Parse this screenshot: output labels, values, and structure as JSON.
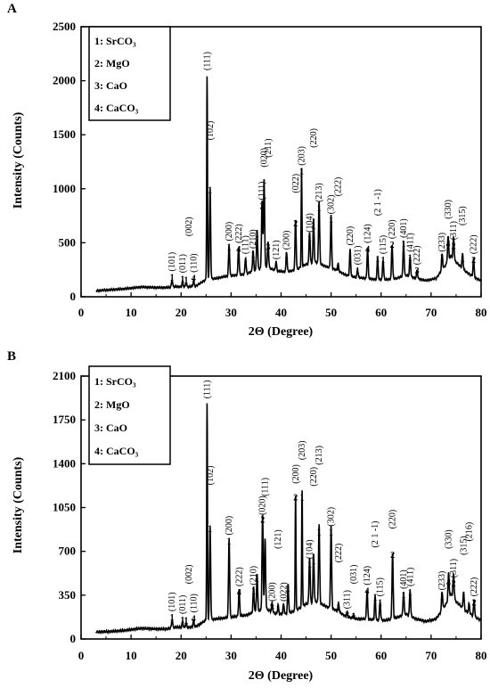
{
  "chart_data": [
    {
      "panel": "A",
      "type": "line",
      "xlabel": "2Θ (Degree)",
      "ylabel": "Intensity (Counts)",
      "xlim": [
        0,
        80
      ],
      "ylim": [
        0,
        2500
      ],
      "xticks": [
        0,
        10,
        20,
        30,
        40,
        50,
        60,
        70,
        80
      ],
      "yticks": [
        0,
        500,
        1000,
        1500,
        2000,
        2500
      ],
      "legend": [
        "1: SrCO₃",
        "2: MgO",
        "3: CaO",
        "4: CaCO₃"
      ],
      "legend_position": "top-left",
      "grid": false,
      "baseline": [
        [
          3,
          55
        ],
        [
          6,
          65
        ],
        [
          9,
          75
        ],
        [
          12,
          90
        ],
        [
          15,
          85
        ],
        [
          17,
          85
        ],
        [
          19,
          95
        ],
        [
          21,
          90
        ],
        [
          23,
          100
        ],
        [
          25,
          160
        ],
        [
          27,
          170
        ],
        [
          29,
          190
        ],
        [
          31,
          200
        ],
        [
          33,
          210
        ],
        [
          35,
          250
        ],
        [
          37,
          280
        ],
        [
          39,
          240
        ],
        [
          41,
          230
        ],
        [
          43,
          250
        ],
        [
          45,
          300
        ],
        [
          47,
          320
        ],
        [
          49,
          280
        ],
        [
          51,
          250
        ],
        [
          53,
          200
        ],
        [
          55,
          180
        ],
        [
          57,
          170
        ],
        [
          59,
          160
        ],
        [
          61,
          160
        ],
        [
          63,
          170
        ],
        [
          65,
          200
        ],
        [
          67,
          170
        ],
        [
          69,
          150
        ],
        [
          71,
          170
        ],
        [
          73,
          300
        ],
        [
          74,
          380
        ],
        [
          75,
          320
        ],
        [
          77,
          230
        ],
        [
          79,
          170
        ],
        [
          80,
          150
        ]
      ],
      "peaks": [
        {
          "x": 18.2,
          "y": 120,
          "num": "1",
          "hkl": "(101)"
        },
        {
          "x": 20.3,
          "y": 105,
          "num": "1",
          "hkl": "(011)"
        },
        {
          "x": 21.0,
          "y": 95,
          "num": "1",
          "hkl": ""
        },
        {
          "x": 22.5,
          "y": 110,
          "num": "4",
          "hkl": "(110)"
        },
        {
          "x": 21.6,
          "y": 0,
          "num": "",
          "hkl": "(002)",
          "label_y": 560
        },
        {
          "x": 25.2,
          "y": 1980,
          "num": "",
          "hkl": "(111)"
        },
        {
          "x": 25.8,
          "y": 930,
          "num": "1",
          "hkl": "(102)",
          "label_y": 1450
        },
        {
          "x": 29.6,
          "y": 400,
          "num": "1",
          "hkl": "(200)"
        },
        {
          "x": 31.5,
          "y": 380,
          "num": "4",
          "hkl": "(222)"
        },
        {
          "x": 32.9,
          "y": 280,
          "num": "",
          "hkl": "(111)"
        },
        {
          "x": 34.4,
          "y": 330,
          "num": "1",
          "hkl": "(210)"
        },
        {
          "x": 35.2,
          "y": 520,
          "num": "1",
          "hkl": ""
        },
        {
          "x": 36.2,
          "y": 780,
          "num": "2",
          "hkl": "(111)"
        },
        {
          "x": 36.6,
          "y": 980,
          "num": "",
          "hkl": "(020)",
          "label_y": 1200
        },
        {
          "x": 37.4,
          "y": 400,
          "num": "3",
          "hkl": "(211)",
          "label_y": 1290
        },
        {
          "x": 39.0,
          "y": 230,
          "num": "",
          "hkl": "(121)"
        },
        {
          "x": 41.1,
          "y": 320,
          "num": "1",
          "hkl": "(200)"
        },
        {
          "x": 42.9,
          "y": 620,
          "num": "2",
          "hkl": "(022)",
          "label_y": 960
        },
        {
          "x": 44.1,
          "y": 1100,
          "num": "1",
          "hkl": "(203)"
        },
        {
          "x": 45.7,
          "y": 480,
          "num": "1",
          "hkl": "(104)"
        },
        {
          "x": 46.5,
          "y": 600,
          "num": "1",
          "hkl": "(220)",
          "label_y": 1380
        },
        {
          "x": 47.6,
          "y": 760,
          "num": "1",
          "hkl": "(213)"
        },
        {
          "x": 50.0,
          "y": 650,
          "num": "1",
          "hkl": "(302)"
        },
        {
          "x": 51.4,
          "y": 210,
          "num": "1",
          "hkl": "(222)",
          "label_y": 930
        },
        {
          "x": 53.8,
          "y": 360,
          "num": "",
          "hkl": "(220)"
        },
        {
          "x": 55.3,
          "y": 180,
          "num": "1",
          "hkl": "(031)"
        },
        {
          "x": 57.3,
          "y": 380,
          "num": "4",
          "hkl": "(124)"
        },
        {
          "x": 59.3,
          "y": 290,
          "num": "1",
          "hkl": "(2 1 -1)",
          "label_y": 750
        },
        {
          "x": 60.4,
          "y": 280,
          "num": "1",
          "hkl": "(115)"
        },
        {
          "x": 62.2,
          "y": 420,
          "num": "2",
          "hkl": "(220)"
        },
        {
          "x": 64.5,
          "y": 430,
          "num": "1",
          "hkl": "(401)"
        },
        {
          "x": 65.8,
          "y": 300,
          "num": "1",
          "hkl": "(411)"
        },
        {
          "x": 67.2,
          "y": 180,
          "num": "3",
          "hkl": "(222)"
        },
        {
          "x": 72.2,
          "y": 300,
          "num": "1",
          "hkl": "(233)"
        },
        {
          "x": 73.4,
          "y": 430,
          "num": "4",
          "hkl": "(330)",
          "label_y": 720
        },
        {
          "x": 74.5,
          "y": 410,
          "num": "2",
          "hkl": "(311)"
        },
        {
          "x": 76.3,
          "y": 290,
          "num": "1",
          "hkl": "(315)",
          "label_y": 660
        },
        {
          "x": 78.5,
          "y": 280,
          "num": "2",
          "hkl": "(222)"
        }
      ]
    },
    {
      "panel": "B",
      "type": "line",
      "xlabel": "2Θ (Degree)",
      "ylabel": "Intensity (Counts)",
      "xlim": [
        0,
        80
      ],
      "ylim": [
        0,
        2100
      ],
      "xticks": [
        0,
        10,
        20,
        30,
        40,
        50,
        60,
        70,
        80
      ],
      "yticks": [
        0,
        350,
        700,
        1050,
        1400,
        1750,
        2100
      ],
      "legend": [
        "1: SrCO₃",
        "2: MgO",
        "3: CaO",
        "4: CaCO₃"
      ],
      "legend_position": "top-left",
      "grid": false,
      "baseline": [
        [
          3,
          55
        ],
        [
          6,
          60
        ],
        [
          9,
          70
        ],
        [
          12,
          85
        ],
        [
          15,
          80
        ],
        [
          17,
          80
        ],
        [
          19,
          95
        ],
        [
          21,
          90
        ],
        [
          23,
          100
        ],
        [
          25,
          150
        ],
        [
          27,
          160
        ],
        [
          29,
          170
        ],
        [
          31,
          180
        ],
        [
          33,
          190
        ],
        [
          35,
          220
        ],
        [
          37,
          240
        ],
        [
          39,
          200
        ],
        [
          41,
          200
        ],
        [
          43,
          230
        ],
        [
          45,
          280
        ],
        [
          47,
          300
        ],
        [
          49,
          260
        ],
        [
          51,
          230
        ],
        [
          53,
          180
        ],
        [
          55,
          160
        ],
        [
          57,
          160
        ],
        [
          59,
          150
        ],
        [
          61,
          150
        ],
        [
          63,
          170
        ],
        [
          65,
          200
        ],
        [
          67,
          160
        ],
        [
          69,
          140
        ],
        [
          71,
          160
        ],
        [
          73,
          280
        ],
        [
          74,
          360
        ],
        [
          75,
          300
        ],
        [
          77,
          220
        ],
        [
          79,
          170
        ],
        [
          80,
          150
        ]
      ],
      "peaks": [
        {
          "x": 18.2,
          "y": 120,
          "num": "1",
          "hkl": "(101)"
        },
        {
          "x": 20.3,
          "y": 100,
          "num": "1",
          "hkl": "(011)"
        },
        {
          "x": 21.0,
          "y": 95,
          "num": "1",
          "hkl": ""
        },
        {
          "x": 22.5,
          "y": 110,
          "num": "4",
          "hkl": "(110)"
        },
        {
          "x": 21.6,
          "y": 0,
          "num": "",
          "hkl": "(002)",
          "label_y": 440
        },
        {
          "x": 25.2,
          "y": 1820,
          "num": "",
          "hkl": "(111)"
        },
        {
          "x": 25.8,
          "y": 830,
          "num": "1",
          "hkl": "(102)",
          "label_y": 1230
        },
        {
          "x": 29.6,
          "y": 730,
          "num": "1",
          "hkl": "(200)"
        },
        {
          "x": 31.6,
          "y": 320,
          "num": "4",
          "hkl": "(222)"
        },
        {
          "x": 34.5,
          "y": 330,
          "num": "1",
          "hkl": "(210)"
        },
        {
          "x": 35.2,
          "y": 430,
          "num": "1",
          "hkl": ""
        },
        {
          "x": 36.3,
          "y": 900,
          "num": "2",
          "hkl": "(020)",
          "label_y": 990
        },
        {
          "x": 36.8,
          "y": 700,
          "num": "",
          "hkl": "(111)",
          "label_y": 1140
        },
        {
          "x": 38.2,
          "y": 200,
          "num": "3",
          "hkl": "(200)"
        },
        {
          "x": 39.4,
          "y": 190,
          "num": "1",
          "hkl": "(121)",
          "label_y": 720
        },
        {
          "x": 40.5,
          "y": 200,
          "num": "",
          "hkl": "(022)"
        },
        {
          "x": 41.4,
          "y": 350,
          "num": "1",
          "hkl": ""
        },
        {
          "x": 42.9,
          "y": 1080,
          "num": "2",
          "hkl": "(200)",
          "label_y": 1240
        },
        {
          "x": 44.2,
          "y": 1080,
          "num": "1",
          "hkl": "(203)",
          "label_y": 1430
        },
        {
          "x": 45.7,
          "y": 540,
          "num": "1",
          "hkl": "(104)"
        },
        {
          "x": 46.5,
          "y": 570,
          "num": "1",
          "hkl": "(220)",
          "label_y": 1220
        },
        {
          "x": 47.6,
          "y": 800,
          "num": "1",
          "hkl": "(213)",
          "label_y": 1390
        },
        {
          "x": 50.0,
          "y": 800,
          "num": "1",
          "hkl": "(302)"
        },
        {
          "x": 51.5,
          "y": 200,
          "num": "1",
          "hkl": "(222)",
          "label_y": 610
        },
        {
          "x": 53.2,
          "y": 140,
          "num": "3",
          "hkl": "(311)"
        },
        {
          "x": 54.5,
          "y": 130,
          "num": "1",
          "hkl": "(031)",
          "label_y": 440
        },
        {
          "x": 57.2,
          "y": 330,
          "num": "4",
          "hkl": "(124)"
        },
        {
          "x": 58.8,
          "y": 280,
          "num": "1",
          "hkl": "(2 1 -1)",
          "label_y": 730
        },
        {
          "x": 59.8,
          "y": 240,
          "num": "1",
          "hkl": "(115)"
        },
        {
          "x": 62.3,
          "y": 620,
          "num": "2",
          "hkl": "(220)",
          "label_y": 880
        },
        {
          "x": 64.5,
          "y": 300,
          "num": "1",
          "hkl": "(401)"
        },
        {
          "x": 65.8,
          "y": 320,
          "num": "1",
          "hkl": "(411)"
        },
        {
          "x": 72.2,
          "y": 290,
          "num": "1",
          "hkl": "(233)"
        },
        {
          "x": 73.5,
          "y": 400,
          "num": "4",
          "hkl": "(330)",
          "label_y": 720
        },
        {
          "x": 74.5,
          "y": 390,
          "num": "2",
          "hkl": "(311)"
        },
        {
          "x": 76.5,
          "y": 280,
          "num": "1",
          "hkl": "(315)",
          "label_y": 670
        },
        {
          "x": 77.6,
          "y": 200,
          "num": "",
          "hkl": "(216)",
          "label_y": 780
        },
        {
          "x": 78.6,
          "y": 240,
          "num": "2",
          "hkl": "(222)"
        }
      ]
    }
  ]
}
